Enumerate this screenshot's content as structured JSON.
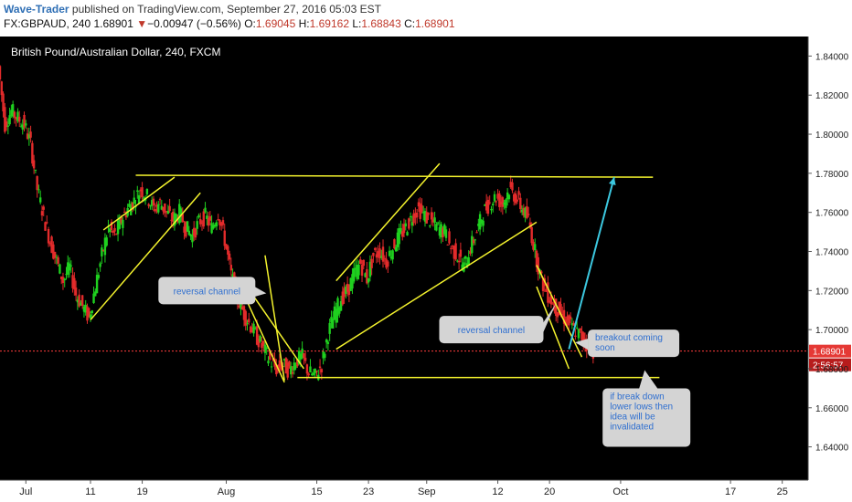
{
  "header": {
    "author": "Wave-Trader",
    "published_text": " published on TradingView.com, September 27, 2016 05:03 EST",
    "symbol": "FX:GBPAUD, 240",
    "last": "1.68901",
    "change_arrow": "▼",
    "change": "−0.00947 (−0.56%)",
    "open_label": "O:",
    "open": "1.69045",
    "high_label": "H:",
    "high": "1.69162",
    "low_label": "L:",
    "low": "1.68843",
    "close_label": "C:",
    "close": "1.68901"
  },
  "chart_data": {
    "type": "candlestick",
    "title": "British Pound/Australian Dollar, 240, FXCM",
    "ylim": [
      1.623,
      1.85
    ],
    "y_ticks": [
      "1.84000",
      "1.82000",
      "1.80000",
      "1.78000",
      "1.76000",
      "1.74000",
      "1.72000",
      "1.70000",
      "1.68000",
      "1.66000",
      "1.64000"
    ],
    "x_ticks": [
      {
        "label": "Jul",
        "pos": 0.0
      },
      {
        "label": "11",
        "pos": 10
      },
      {
        "label": "19",
        "pos": 18
      },
      {
        "label": "Aug",
        "pos": 31
      },
      {
        "label": "15",
        "pos": 45
      },
      {
        "label": "23",
        "pos": 53
      },
      {
        "label": "Sep",
        "pos": 62
      },
      {
        "label": "12",
        "pos": 73
      },
      {
        "label": "20",
        "pos": 81
      },
      {
        "label": "Oct",
        "pos": 92
      },
      {
        "label": "17",
        "pos": 109
      },
      {
        "label": "25",
        "pos": 117
      }
    ],
    "x_range": [
      -4,
      121
    ],
    "price_path": [
      [
        -4,
        1.835
      ],
      [
        -3,
        1.805
      ],
      [
        -2,
        1.812
      ],
      [
        -1,
        1.808
      ],
      [
        0,
        1.805
      ],
      [
        1,
        1.795
      ],
      [
        2,
        1.772
      ],
      [
        3,
        1.758
      ],
      [
        4,
        1.745
      ],
      [
        5,
        1.735
      ],
      [
        6,
        1.725
      ],
      [
        7,
        1.732
      ],
      [
        8,
        1.718
      ],
      [
        9,
        1.712
      ],
      [
        10,
        1.706
      ],
      [
        11,
        1.722
      ],
      [
        12,
        1.738
      ],
      [
        13,
        1.752
      ],
      [
        14,
        1.748
      ],
      [
        15,
        1.756
      ],
      [
        16,
        1.762
      ],
      [
        17,
        1.766
      ],
      [
        18,
        1.772
      ],
      [
        19,
        1.768
      ],
      [
        20,
        1.762
      ],
      [
        21,
        1.765
      ],
      [
        22,
        1.76
      ],
      [
        23,
        1.756
      ],
      [
        24,
        1.76
      ],
      [
        25,
        1.752
      ],
      [
        26,
        1.748
      ],
      [
        27,
        1.755
      ],
      [
        28,
        1.758
      ],
      [
        29,
        1.752
      ],
      [
        30,
        1.76
      ],
      [
        31,
        1.746
      ],
      [
        32,
        1.728
      ],
      [
        33,
        1.716
      ],
      [
        34,
        1.708
      ],
      [
        35,
        1.702
      ],
      [
        36,
        1.696
      ],
      [
        37,
        1.69
      ],
      [
        38,
        1.684
      ],
      [
        39,
        1.68
      ],
      [
        40,
        1.682
      ],
      [
        41,
        1.679
      ],
      [
        42,
        1.684
      ],
      [
        43,
        1.686
      ],
      [
        44,
        1.678
      ],
      [
        45,
        1.676
      ],
      [
        46,
        1.682
      ],
      [
        47,
        1.698
      ],
      [
        48,
        1.708
      ],
      [
        49,
        1.716
      ],
      [
        50,
        1.72
      ],
      [
        51,
        1.728
      ],
      [
        52,
        1.734
      ],
      [
        53,
        1.726
      ],
      [
        54,
        1.738
      ],
      [
        55,
        1.74
      ],
      [
        56,
        1.735
      ],
      [
        57,
        1.742
      ],
      [
        58,
        1.748
      ],
      [
        59,
        1.752
      ],
      [
        60,
        1.758
      ],
      [
        61,
        1.762
      ],
      [
        62,
        1.758
      ],
      [
        63,
        1.755
      ],
      [
        64,
        1.752
      ],
      [
        65,
        1.75
      ],
      [
        66,
        1.742
      ],
      [
        67,
        1.738
      ],
      [
        68,
        1.732
      ],
      [
        69,
        1.742
      ],
      [
        70,
        1.75
      ],
      [
        71,
        1.76
      ],
      [
        72,
        1.765
      ],
      [
        73,
        1.768
      ],
      [
        74,
        1.764
      ],
      [
        75,
        1.772
      ],
      [
        76,
        1.768
      ],
      [
        77,
        1.762
      ],
      [
        78,
        1.756
      ],
      [
        79,
        1.74
      ],
      [
        80,
        1.725
      ],
      [
        81,
        1.718
      ],
      [
        82,
        1.712
      ],
      [
        83,
        1.708
      ],
      [
        84,
        1.704
      ],
      [
        85,
        1.7
      ],
      [
        86,
        1.697
      ],
      [
        87,
        1.693
      ],
      [
        88,
        1.689
      ]
    ],
    "last_price": 1.68901,
    "last_price_label": "1.68901",
    "countdown_label": "2:56:57",
    "trend_lines": [
      {
        "name": "upper-resistance",
        "from": [
          17,
          1.779
        ],
        "to": [
          97,
          1.778
        ]
      },
      {
        "name": "lower-support",
        "from": [
          42,
          1.6755
        ],
        "to": [
          98,
          1.6755
        ]
      },
      {
        "name": "jul-channel-top",
        "from": [
          12,
          1.751
        ],
        "to": [
          23,
          1.778
        ]
      },
      {
        "name": "jul-channel-bottom",
        "from": [
          10,
          1.705
        ],
        "to": [
          27,
          1.77
        ]
      },
      {
        "name": "aug-channel-top",
        "from": [
          34,
          1.723
        ],
        "to": [
          43,
          1.68
        ]
      },
      {
        "name": "aug-channel-bottom",
        "from": [
          34,
          1.716
        ],
        "to": [
          40,
          1.673
        ]
      },
      {
        "name": "aug-channel-left",
        "from": [
          37,
          1.738
        ],
        "to": [
          40,
          1.674
        ]
      },
      {
        "name": "sep-channel-top",
        "from": [
          48,
          1.725
        ],
        "to": [
          64,
          1.785
        ]
      },
      {
        "name": "sep-channel-bottom",
        "from": [
          48,
          1.69
        ],
        "to": [
          79,
          1.755
        ]
      },
      {
        "name": "late-sep-channel-top",
        "from": [
          79,
          1.733
        ],
        "to": [
          86,
          1.686
        ]
      },
      {
        "name": "late-sep-channel-bottom",
        "from": [
          79,
          1.722
        ],
        "to": [
          84,
          1.68
        ]
      }
    ],
    "projection_arrow": {
      "from": [
        84,
        1.69
      ],
      "to": [
        91,
        1.778
      ]
    },
    "annotations": [
      {
        "name": "reversal-channel-1",
        "text": "reversal channel",
        "at": [
          28,
          1.72
        ]
      },
      {
        "name": "reversal-channel-2",
        "text": "reversal channel",
        "at": [
          72,
          1.7
        ]
      },
      {
        "name": "breakout-coming-soon",
        "text": "breakout coming soon",
        "at": [
          94,
          1.693
        ]
      },
      {
        "name": "break-down-invalidated",
        "text": "if break down lower lows then idea will be invalidated",
        "at": [
          96,
          1.655
        ]
      }
    ],
    "colors": {
      "bg": "#000000",
      "up": "#1fd11f",
      "down": "#e32b2b",
      "trend": "#f4f32d",
      "arrow": "#3cc8e0",
      "price_line": "#ff3b3b",
      "label_bg": "#d4d4d4",
      "label_text": "#2f6fd0"
    }
  }
}
